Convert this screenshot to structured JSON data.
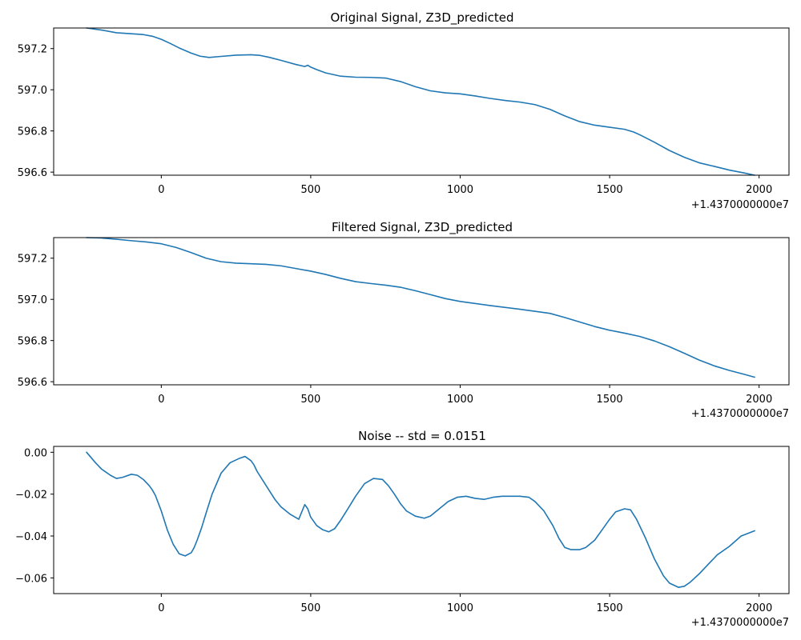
{
  "figure": {
    "offset_label": "+1.4370000000e7",
    "line_color": "#1f77b4"
  },
  "chart_data": [
    {
      "type": "line",
      "title": "Original Signal, Z3D_predicted",
      "xlabel": "",
      "ylabel": "",
      "xlim": [
        -360,
        2100
      ],
      "ylim": [
        596.585,
        597.3
      ],
      "xticks": [
        0,
        500,
        1000,
        1500,
        2000
      ],
      "yticks": [
        596.6,
        596.8,
        597.0,
        597.2
      ],
      "xtick_labels": [
        "0",
        "500",
        "1000",
        "1500",
        "2000"
      ],
      "ytick_labels": [
        "596.6",
        "596.8",
        "597.0",
        "597.2"
      ],
      "x_offset_label": "+1.4370000000e7",
      "grid": false,
      "series": [
        {
          "x": [
            -250,
            -200,
            -150,
            -100,
            -60,
            -30,
            0,
            30,
            60,
            100,
            130,
            160,
            200,
            250,
            300,
            330,
            360,
            400,
            450,
            480,
            490,
            500,
            520,
            550,
            600,
            650,
            700,
            750,
            800,
            850,
            900,
            950,
            1000,
            1050,
            1100,
            1150,
            1200,
            1250,
            1300,
            1350,
            1400,
            1450,
            1500,
            1550,
            1580,
            1600,
            1650,
            1700,
            1750,
            1800,
            1850,
            1900,
            1950,
            1985
          ],
          "y": [
            597.3,
            597.29,
            597.277,
            597.272,
            597.268,
            597.26,
            597.245,
            597.225,
            597.203,
            597.178,
            597.163,
            597.157,
            597.162,
            597.168,
            597.17,
            597.167,
            597.158,
            597.143,
            597.123,
            597.113,
            597.119,
            597.11,
            597.098,
            597.082,
            597.066,
            597.061,
            597.06,
            597.057,
            597.04,
            597.015,
            596.995,
            596.985,
            596.98,
            596.97,
            596.958,
            596.948,
            596.94,
            596.928,
            596.905,
            596.873,
            596.845,
            596.828,
            596.818,
            596.808,
            596.795,
            596.782,
            596.745,
            596.705,
            596.672,
            596.645,
            596.628,
            596.61,
            596.596,
            596.585
          ]
        }
      ]
    },
    {
      "type": "line",
      "title": "Filtered Signal, Z3D_predicted",
      "xlabel": "",
      "ylabel": "",
      "xlim": [
        -360,
        2100
      ],
      "ylim": [
        596.585,
        597.3
      ],
      "xticks": [
        0,
        500,
        1000,
        1500,
        2000
      ],
      "yticks": [
        596.6,
        596.8,
        597.0,
        597.2
      ],
      "xtick_labels": [
        "0",
        "500",
        "1000",
        "1500",
        "2000"
      ],
      "ytick_labels": [
        "596.6",
        "596.8",
        "597.0",
        "597.2"
      ],
      "x_offset_label": "+1.4370000000e7",
      "grid": false,
      "series": [
        {
          "x": [
            -250,
            -200,
            -150,
            -100,
            -50,
            0,
            50,
            100,
            150,
            200,
            250,
            300,
            350,
            400,
            450,
            500,
            550,
            600,
            650,
            700,
            750,
            800,
            850,
            900,
            950,
            1000,
            1100,
            1200,
            1300,
            1350,
            1400,
            1450,
            1500,
            1550,
            1600,
            1650,
            1700,
            1750,
            1800,
            1850,
            1900,
            1950,
            1985
          ],
          "y": [
            597.3,
            597.298,
            597.292,
            597.285,
            597.279,
            597.27,
            597.252,
            597.227,
            597.2,
            597.183,
            597.176,
            597.173,
            597.17,
            597.163,
            597.15,
            597.137,
            597.121,
            597.102,
            597.086,
            597.077,
            597.069,
            597.059,
            597.042,
            597.023,
            597.004,
            596.99,
            596.97,
            596.952,
            596.932,
            596.912,
            596.89,
            596.868,
            596.85,
            596.836,
            596.82,
            596.798,
            596.77,
            596.738,
            596.705,
            596.677,
            596.655,
            596.636,
            596.622
          ]
        }
      ]
    },
    {
      "type": "line",
      "title": "Noise -- std = 0.0151",
      "xlabel": "",
      "ylabel": "",
      "xlim": [
        -360,
        2100
      ],
      "ylim": [
        -0.0675,
        0.0028
      ],
      "xticks": [
        0,
        500,
        1000,
        1500,
        2000
      ],
      "yticks": [
        0.0,
        -0.02,
        -0.04,
        -0.06
      ],
      "xtick_labels": [
        "0",
        "500",
        "1000",
        "1500",
        "2000"
      ],
      "ytick_labels": [
        "0.00",
        "−0.02",
        "−0.04",
        "−0.06"
      ],
      "x_offset_label": "+1.4370000000e7",
      "grid": false,
      "series": [
        {
          "x": [
            -250,
            -220,
            -200,
            -170,
            -150,
            -130,
            -100,
            -80,
            -60,
            -40,
            -30,
            -20,
            0,
            20,
            40,
            60,
            80,
            100,
            110,
            120,
            135,
            150,
            170,
            200,
            230,
            260,
            280,
            300,
            310,
            320,
            340,
            360,
            380,
            400,
            430,
            460,
            480,
            490,
            500,
            520,
            540,
            560,
            580,
            600,
            620,
            650,
            680,
            710,
            740,
            760,
            780,
            800,
            820,
            850,
            880,
            900,
            930,
            960,
            990,
            1020,
            1050,
            1080,
            1110,
            1140,
            1170,
            1200,
            1230,
            1250,
            1280,
            1310,
            1330,
            1350,
            1370,
            1400,
            1420,
            1450,
            1480,
            1500,
            1520,
            1550,
            1570,
            1590,
            1620,
            1650,
            1680,
            1700,
            1730,
            1750,
            1770,
            1800,
            1830,
            1860,
            1900,
            1940,
            1985
          ],
          "y": [
            0.0,
            -0.005,
            -0.008,
            -0.011,
            -0.0125,
            -0.012,
            -0.0105,
            -0.011,
            -0.013,
            -0.016,
            -0.018,
            -0.0205,
            -0.028,
            -0.037,
            -0.044,
            -0.0485,
            -0.0495,
            -0.048,
            -0.0455,
            -0.042,
            -0.036,
            -0.029,
            -0.02,
            -0.01,
            -0.005,
            -0.003,
            -0.002,
            -0.004,
            -0.006,
            -0.009,
            -0.0135,
            -0.018,
            -0.0225,
            -0.026,
            -0.0295,
            -0.032,
            -0.025,
            -0.027,
            -0.031,
            -0.035,
            -0.037,
            -0.038,
            -0.0365,
            -0.0325,
            -0.028,
            -0.021,
            -0.015,
            -0.0125,
            -0.013,
            -0.016,
            -0.02,
            -0.0245,
            -0.028,
            -0.0305,
            -0.0315,
            -0.0305,
            -0.027,
            -0.0235,
            -0.0215,
            -0.021,
            -0.022,
            -0.0225,
            -0.0215,
            -0.021,
            -0.021,
            -0.021,
            -0.0215,
            -0.0235,
            -0.028,
            -0.035,
            -0.041,
            -0.0455,
            -0.0465,
            -0.0465,
            -0.0455,
            -0.042,
            -0.036,
            -0.032,
            -0.0285,
            -0.027,
            -0.0275,
            -0.032,
            -0.041,
            -0.051,
            -0.059,
            -0.0625,
            -0.0645,
            -0.064,
            -0.062,
            -0.058,
            -0.0535,
            -0.049,
            -0.045,
            -0.04,
            -0.0375
          ]
        }
      ]
    }
  ]
}
